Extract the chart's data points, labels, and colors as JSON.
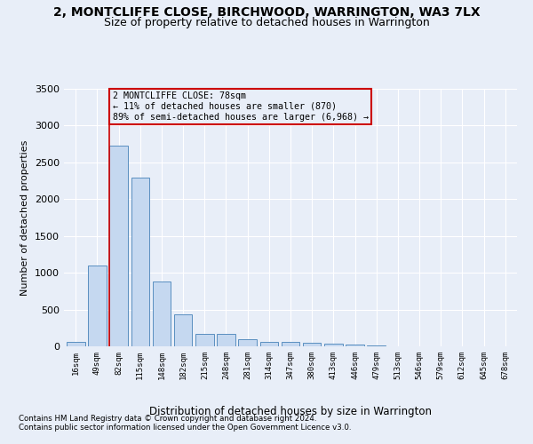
{
  "title": "2, MONTCLIFFE CLOSE, BIRCHWOOD, WARRINGTON, WA3 7LX",
  "subtitle": "Size of property relative to detached houses in Warrington",
  "xlabel": "Distribution of detached houses by size in Warrington",
  "ylabel": "Number of detached properties",
  "bar_color": "#c5d8f0",
  "bar_edge_color": "#5a8fc0",
  "vline_color": "#cc0000",
  "vline_position": 2,
  "categories": [
    "16sqm",
    "49sqm",
    "82sqm",
    "115sqm",
    "148sqm",
    "182sqm",
    "215sqm",
    "248sqm",
    "281sqm",
    "314sqm",
    "347sqm",
    "380sqm",
    "413sqm",
    "446sqm",
    "479sqm",
    "513sqm",
    "546sqm",
    "579sqm",
    "612sqm",
    "645sqm",
    "678sqm"
  ],
  "values": [
    55,
    1100,
    2730,
    2290,
    880,
    430,
    170,
    170,
    95,
    65,
    55,
    50,
    35,
    30,
    8,
    5,
    3,
    2,
    1,
    1,
    1
  ],
  "ylim": [
    0,
    3500
  ],
  "yticks": [
    0,
    500,
    1000,
    1500,
    2000,
    2500,
    3000,
    3500
  ],
  "annotation_title": "2 MONTCLIFFE CLOSE: 78sqm",
  "annotation_line1": "← 11% of detached houses are smaller (870)",
  "annotation_line2": "89% of semi-detached houses are larger (6,968) →",
  "footnote1": "Contains HM Land Registry data © Crown copyright and database right 2024.",
  "footnote2": "Contains public sector information licensed under the Open Government Licence v3.0.",
  "bg_color": "#e8eef8",
  "grid_color": "#ffffff",
  "title_fontsize": 10,
  "subtitle_fontsize": 9
}
